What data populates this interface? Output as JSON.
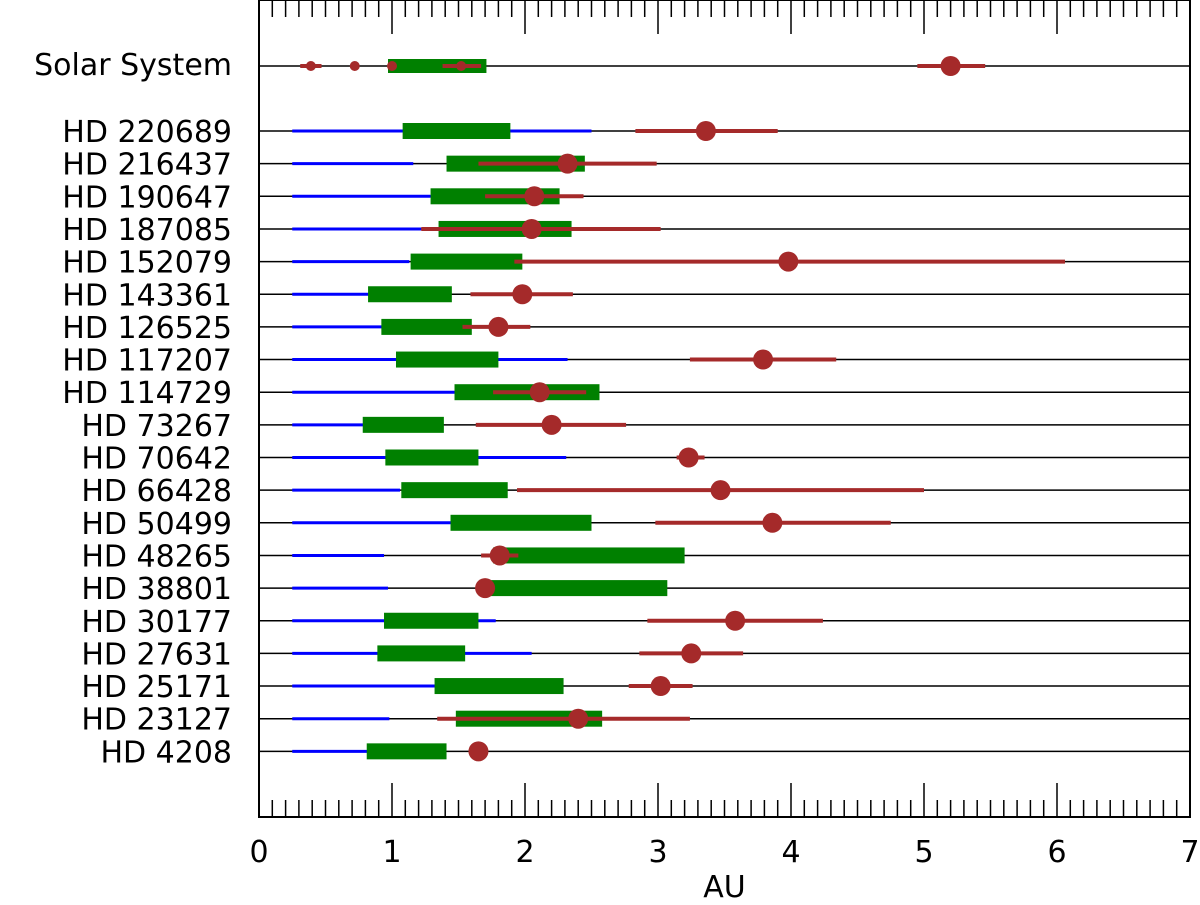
{
  "chart_data": {
    "type": "range",
    "title": "",
    "xlabel": "AU",
    "ylabel": "",
    "xlim": [
      0,
      7
    ],
    "xticks": [
      "0",
      "1",
      "2",
      "3",
      "4",
      "5",
      "6",
      "7"
    ],
    "colors": {
      "inner": "#0000ff",
      "hz": "#008000",
      "planet": "#a52a2a",
      "axis": "#000000"
    },
    "solar_system": {
      "label": "Solar System",
      "hz": [
        0.97,
        1.71
      ],
      "planets": [
        {
          "a": 0.39,
          "range": [
            0.31,
            0.47
          ],
          "size": "small"
        },
        {
          "a": 0.72,
          "range": null,
          "size": "small"
        },
        {
          "a": 1.0,
          "range": null,
          "size": "small"
        },
        {
          "a": 1.52,
          "range": [
            1.38,
            1.67
          ],
          "size": "small"
        },
        {
          "a": 5.2,
          "range": [
            4.95,
            5.46
          ],
          "size": "large"
        }
      ]
    },
    "stars": [
      {
        "label": "HD 220689",
        "inner": 2.5,
        "hz": [
          1.08,
          1.89
        ],
        "range": [
          2.83,
          3.9
        ],
        "a": 3.36
      },
      {
        "label": "HD 216437",
        "inner": 1.16,
        "hz": [
          1.41,
          2.45
        ],
        "range": [
          1.65,
          2.99
        ],
        "a": 2.32
      },
      {
        "label": "HD 190647",
        "inner": 1.29,
        "hz": [
          1.29,
          2.26
        ],
        "range": [
          1.7,
          2.44
        ],
        "a": 2.07
      },
      {
        "label": "HD 187085",
        "inner": 1.22,
        "hz": [
          1.35,
          2.35
        ],
        "range": [
          1.22,
          3.02
        ],
        "a": 2.05
      },
      {
        "label": "HD 152079",
        "inner": 1.13,
        "hz": [
          1.14,
          1.98
        ],
        "range": [
          1.92,
          6.06
        ],
        "a": 3.98
      },
      {
        "label": "HD 143361",
        "inner": 1.05,
        "hz": [
          0.82,
          1.45
        ],
        "range": [
          1.59,
          2.36
        ],
        "a": 1.98
      },
      {
        "label": "HD 126525",
        "inner": 1.5,
        "hz": [
          0.92,
          1.6
        ],
        "range": [
          1.53,
          2.04
        ],
        "a": 1.8
      },
      {
        "label": "HD 117207",
        "inner": 2.32,
        "hz": [
          1.03,
          1.8
        ],
        "range": [
          3.24,
          4.34
        ],
        "a": 3.79
      },
      {
        "label": "HD 114729",
        "inner": 1.47,
        "hz": [
          1.47,
          2.56
        ],
        "range": [
          1.76,
          2.46
        ],
        "a": 2.11
      },
      {
        "label": "HD 73267",
        "inner": 1.05,
        "hz": [
          0.78,
          1.39
        ],
        "range": [
          1.63,
          2.76
        ],
        "a": 2.2
      },
      {
        "label": "HD 70642",
        "inner": 2.31,
        "hz": [
          0.95,
          1.65
        ],
        "range": [
          3.14,
          3.35
        ],
        "a": 3.23
      },
      {
        "label": "HD 66428",
        "inner": 1.06,
        "hz": [
          1.07,
          1.87
        ],
        "range": [
          1.94,
          5.0
        ],
        "a": 3.47
      },
      {
        "label": "HD 50499",
        "inner": 2.05,
        "hz": [
          1.44,
          2.5
        ],
        "range": [
          2.98,
          4.75
        ],
        "a": 3.86
      },
      {
        "label": "HD 48265",
        "inner": 0.94,
        "hz": [
          1.76,
          3.2
        ],
        "range": [
          1.67,
          1.95
        ],
        "a": 1.81
      },
      {
        "label": "HD 38801",
        "inner": 0.97,
        "hz": [
          1.7,
          3.07
        ],
        "range": null,
        "a": 1.7
      },
      {
        "label": "HD 30177",
        "inner": 1.78,
        "hz": [
          0.94,
          1.65
        ],
        "range": [
          2.92,
          4.24
        ],
        "a": 3.58
      },
      {
        "label": "HD 27631",
        "inner": 2.05,
        "hz": [
          0.89,
          1.55
        ],
        "range": [
          2.86,
          3.64
        ],
        "a": 3.25
      },
      {
        "label": "HD 25171",
        "inner": 2.14,
        "hz": [
          1.32,
          2.29
        ],
        "range": [
          2.78,
          3.26
        ],
        "a": 3.02
      },
      {
        "label": "HD 23127",
        "inner": 0.98,
        "hz": [
          1.48,
          2.58
        ],
        "range": [
          1.34,
          3.24
        ],
        "a": 2.4
      },
      {
        "label": "HD 4208",
        "inner": 1.25,
        "hz": [
          0.81,
          1.41
        ],
        "range": null,
        "a": 1.65
      }
    ]
  }
}
